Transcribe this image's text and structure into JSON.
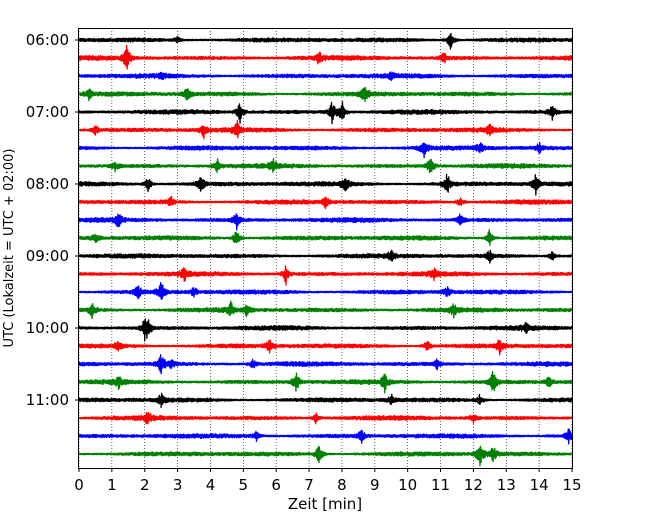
{
  "chart_data": {
    "type": "line",
    "title": "",
    "xlabel": "Zeit  [min]",
    "ylabel": "UTC (Lokalzeit = UTC + 02:00)",
    "xlim": [
      0,
      15
    ],
    "x_ticks": [
      0,
      1,
      2,
      3,
      4,
      5,
      6,
      7,
      8,
      9,
      10,
      11,
      12,
      13,
      14,
      15
    ],
    "x_tick_labels": [
      "0",
      "1",
      "2",
      "3",
      "4",
      "5",
      "6",
      "7",
      "8",
      "9",
      "10",
      "11",
      "12",
      "13",
      "14",
      "15"
    ],
    "y_tick_labels": [
      "06:00",
      "07:00",
      "08:00",
      "09:00",
      "10:00",
      "11:00"
    ],
    "grid": "vertical dotted",
    "legend": "none",
    "trace_interval_minutes": 15,
    "color_cycle": [
      "#000000",
      "#ff0000",
      "#0000ff",
      "#008000"
    ],
    "traces": [
      {
        "start": "06:00",
        "spikes": [
          [
            11.3,
            10
          ],
          [
            3.0,
            3
          ]
        ]
      },
      {
        "start": "06:15",
        "spikes": [
          [
            1.45,
            14
          ],
          [
            7.3,
            6
          ],
          [
            11.1,
            6
          ]
        ]
      },
      {
        "start": "06:30",
        "spikes": [
          [
            2.5,
            3
          ],
          [
            9.5,
            3
          ]
        ]
      },
      {
        "start": "06:45",
        "spikes": [
          [
            0.3,
            5
          ],
          [
            3.3,
            7
          ],
          [
            8.7,
            9
          ]
        ]
      },
      {
        "start": "07:00",
        "spikes": [
          [
            4.9,
            10
          ],
          [
            7.7,
            11
          ],
          [
            8.0,
            12
          ],
          [
            14.4,
            8
          ]
        ]
      },
      {
        "start": "07:15",
        "spikes": [
          [
            0.5,
            5
          ],
          [
            3.8,
            7
          ],
          [
            4.8,
            9
          ],
          [
            12.5,
            5
          ]
        ]
      },
      {
        "start": "07:30",
        "spikes": [
          [
            10.5,
            9
          ],
          [
            12.2,
            5
          ],
          [
            14.0,
            5
          ]
        ]
      },
      {
        "start": "07:45",
        "spikes": [
          [
            1.1,
            5
          ],
          [
            4.2,
            9
          ],
          [
            5.9,
            7
          ],
          [
            10.7,
            10
          ]
        ]
      },
      {
        "start": "08:00",
        "spikes": [
          [
            2.1,
            8
          ],
          [
            3.7,
            9
          ],
          [
            8.1,
            8
          ],
          [
            11.2,
            11
          ],
          [
            13.9,
            10
          ]
        ]
      },
      {
        "start": "08:15",
        "spikes": [
          [
            2.8,
            5
          ],
          [
            7.5,
            5
          ],
          [
            11.6,
            5
          ]
        ]
      },
      {
        "start": "08:30",
        "spikes": [
          [
            1.2,
            7
          ],
          [
            4.8,
            9
          ],
          [
            11.6,
            6
          ]
        ]
      },
      {
        "start": "08:45",
        "spikes": [
          [
            0.5,
            5
          ],
          [
            4.8,
            11
          ],
          [
            12.5,
            10
          ]
        ]
      },
      {
        "start": "09:00",
        "spikes": [
          [
            9.5,
            5
          ],
          [
            12.5,
            6
          ],
          [
            14.4,
            5
          ]
        ]
      },
      {
        "start": "09:15",
        "spikes": [
          [
            3.2,
            7
          ],
          [
            6.3,
            10
          ],
          [
            10.8,
            5
          ]
        ]
      },
      {
        "start": "09:30",
        "spikes": [
          [
            1.8,
            7
          ],
          [
            2.5,
            10
          ],
          [
            3.5,
            5
          ],
          [
            11.2,
            5
          ]
        ]
      },
      {
        "start": "09:45",
        "spikes": [
          [
            0.4,
            7
          ],
          [
            4.6,
            9
          ],
          [
            5.1,
            5
          ],
          [
            11.4,
            6
          ]
        ]
      },
      {
        "start": "10:00",
        "spikes": [
          [
            2.0,
            10
          ],
          [
            2.1,
            8
          ],
          [
            13.6,
            5
          ]
        ]
      },
      {
        "start": "10:15",
        "spikes": [
          [
            1.2,
            6
          ],
          [
            5.8,
            9
          ],
          [
            10.6,
            7
          ],
          [
            12.8,
            8
          ]
        ]
      },
      {
        "start": "10:30",
        "spikes": [
          [
            2.5,
            11
          ],
          [
            2.8,
            5
          ],
          [
            5.3,
            5
          ],
          [
            10.9,
            5
          ]
        ]
      },
      {
        "start": "10:45",
        "spikes": [
          [
            1.2,
            6
          ],
          [
            6.6,
            11
          ],
          [
            9.3,
            9
          ],
          [
            12.6,
            13
          ],
          [
            14.3,
            6
          ]
        ]
      },
      {
        "start": "11:00",
        "spikes": [
          [
            2.5,
            6
          ],
          [
            9.5,
            5
          ],
          [
            12.2,
            6
          ]
        ]
      },
      {
        "start": "11:15",
        "spikes": [
          [
            2.1,
            7
          ],
          [
            7.2,
            5
          ],
          [
            12.0,
            5
          ]
        ]
      },
      {
        "start": "11:30",
        "spikes": [
          [
            8.6,
            7
          ],
          [
            14.9,
            7
          ],
          [
            5.4,
            5
          ]
        ]
      },
      {
        "start": "11:45",
        "spikes": [
          [
            7.3,
            11
          ],
          [
            12.2,
            14
          ],
          [
            12.6,
            8
          ]
        ]
      }
    ]
  }
}
